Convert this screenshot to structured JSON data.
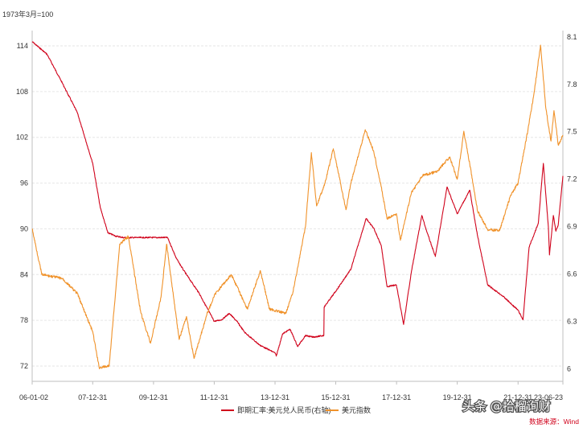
{
  "chart_data": {
    "type": "line",
    "left_axis_unit": "1973年3月=100",
    "left_ticks": [
      72,
      78,
      84,
      90,
      96,
      102,
      108,
      114
    ],
    "left_ylim": [
      70,
      116
    ],
    "right_ticks": [
      "6",
      "6.3",
      "6.6",
      "6.9",
      "7.2",
      "7.5",
      "7.8",
      "8.1"
    ],
    "right_ylim": [
      5.92,
      8.14
    ],
    "x_tick_labels": [
      "06-01-02",
      "07-12-31",
      "09-12-31",
      "11-12-31",
      "13-12-31",
      "15-12-31",
      "17-12-31",
      "19-12-31",
      "21-12-31",
      "23-06-23"
    ],
    "x_tick_dates": [
      "2006-01-02",
      "2007-12-31",
      "2009-12-31",
      "2011-12-31",
      "2013-12-31",
      "2015-12-31",
      "2017-12-31",
      "2019-12-31",
      "2021-12-31",
      "2023-06-23"
    ],
    "xlim": [
      "2006-01-02",
      "2023-06-23"
    ],
    "grid": true,
    "legend_position": "bottom",
    "series": [
      {
        "name": "即期汇率:美元兑人民币(右轴)",
        "axis": "right",
        "color": "#d0021b",
        "x": [
          "2006-01-02",
          "2006-06-30",
          "2006-12-29",
          "2007-06-29",
          "2007-12-31",
          "2008-03-31",
          "2008-06-30",
          "2008-09-30",
          "2008-12-31",
          "2009-06-30",
          "2009-12-31",
          "2010-06-18",
          "2010-09-30",
          "2010-12-31",
          "2011-06-30",
          "2011-12-31",
          "2012-03-30",
          "2012-06-29",
          "2012-09-28",
          "2012-12-31",
          "2013-06-28",
          "2013-12-31",
          "2014-01-15",
          "2014-03-31",
          "2014-06-30",
          "2014-09-30",
          "2014-12-31",
          "2015-03-31",
          "2015-08-10",
          "2015-08-14",
          "2015-12-31",
          "2016-06-30",
          "2016-12-30",
          "2017-03-31",
          "2017-06-30",
          "2017-09-08",
          "2017-12-29",
          "2018-03-26",
          "2018-06-29",
          "2018-10-31",
          "2018-12-28",
          "2019-04-12",
          "2019-08-30",
          "2019-12-31",
          "2020-05-29",
          "2020-08-31",
          "2020-12-31",
          "2021-06-30",
          "2021-12-31",
          "2022-02-28",
          "2022-05-13",
          "2022-08-31",
          "2022-10-31",
          "2022-12-30",
          "2023-01-13",
          "2023-02-28",
          "2023-03-31",
          "2023-04-28",
          "2023-06-23"
        ],
        "values": [
          8.07,
          7.99,
          7.81,
          7.62,
          7.3,
          7.02,
          6.86,
          6.84,
          6.83,
          6.83,
          6.83,
          6.83,
          6.7,
          6.62,
          6.48,
          6.3,
          6.31,
          6.35,
          6.3,
          6.23,
          6.15,
          6.1,
          6.08,
          6.22,
          6.25,
          6.14,
          6.21,
          6.2,
          6.21,
          6.39,
          6.49,
          6.63,
          6.95,
          6.89,
          6.78,
          6.52,
          6.53,
          6.28,
          6.62,
          6.97,
          6.87,
          6.71,
          7.15,
          6.98,
          7.13,
          6.84,
          6.53,
          6.46,
          6.37,
          6.31,
          6.77,
          6.92,
          7.3,
          6.9,
          6.72,
          6.97,
          6.87,
          6.91,
          7.22
        ]
      },
      {
        "name": "美元指数",
        "axis": "left",
        "color": "#f0922a",
        "x": [
          "2006-01-02",
          "2006-04-28",
          "2006-12-29",
          "2007-06-29",
          "2007-12-31",
          "2008-03-17",
          "2008-07-15",
          "2008-11-20",
          "2009-03-04",
          "2009-07-31",
          "2009-11-25",
          "2010-03-31",
          "2010-06-07",
          "2010-11-04",
          "2011-01-31",
          "2011-05-02",
          "2011-10-04",
          "2012-01-13",
          "2012-07-24",
          "2013-02-01",
          "2013-07-09",
          "2013-10-24",
          "2014-05-06",
          "2014-07-31",
          "2014-12-31",
          "2015-03-13",
          "2015-05-15",
          "2015-08-24",
          "2015-12-02",
          "2016-05-02",
          "2016-06-30",
          "2016-12-20",
          "2017-03-31",
          "2017-06-30",
          "2017-09-08",
          "2017-12-29",
          "2018-02-15",
          "2018-06-29",
          "2018-11-12",
          "2019-04-30",
          "2019-09-30",
          "2019-12-31",
          "2020-03-19",
          "2020-05-29",
          "2020-08-31",
          "2020-12-31",
          "2021-05-25",
          "2021-09-30",
          "2021-12-31",
          "2022-04-29",
          "2022-07-14",
          "2022-09-27",
          "2022-11-30",
          "2023-01-31",
          "2023-03-08",
          "2023-04-28",
          "2023-06-23"
        ],
        "values": [
          90.0,
          84.0,
          83.5,
          81.5,
          76.5,
          71.8,
          72.0,
          88.0,
          89.0,
          79.0,
          75.0,
          81.0,
          88.0,
          75.5,
          78.5,
          73.0,
          78.8,
          81.5,
          84.0,
          79.5,
          84.5,
          79.5,
          78.9,
          81.5,
          90.2,
          100.0,
          93.0,
          96.0,
          100.5,
          92.5,
          96.0,
          103.0,
          100.2,
          95.5,
          91.3,
          92.0,
          88.5,
          94.8,
          97.0,
          97.5,
          99.4,
          96.5,
          102.8,
          98.5,
          92.3,
          89.9,
          89.8,
          94.3,
          96.0,
          103.0,
          108.0,
          114.1,
          105.8,
          101.5,
          105.5,
          101.0,
          102.3
        ]
      }
    ]
  },
  "legend": [
    {
      "label": "即期汇率:美元兑人民币(右轴)",
      "color": "#d0021b"
    },
    {
      "label": "美元指数",
      "color": "#f0922a"
    }
  ],
  "source_text": "数据来源：Wind",
  "watermark_text": "头条 @拾榴询财"
}
